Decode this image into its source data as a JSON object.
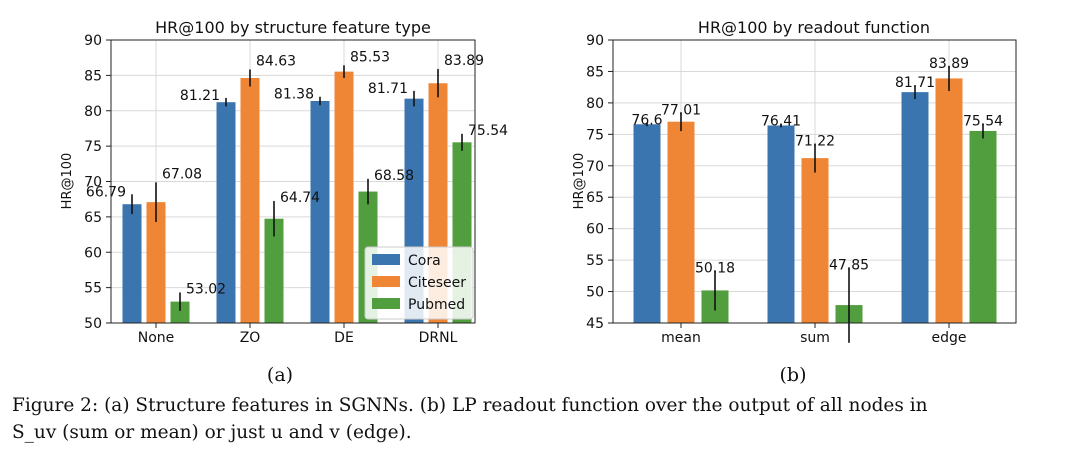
{
  "figure_caption": {
    "line1": "Figure 2: (a) Structure features in SGNNs. (b) LP readout function over the output of all nodes in",
    "line2": "S_uv (sum or mean) or just u and v (edge)."
  },
  "chart_data": [
    {
      "type": "bar",
      "title": "HR@100 by structure feature type",
      "subfigure_label": "(a)",
      "ylabel": "HR@100",
      "ylim": [
        50,
        90
      ],
      "yticks": [
        50,
        55,
        60,
        65,
        70,
        75,
        80,
        85,
        90
      ],
      "grid": true,
      "legend": "lower-right",
      "categories": [
        "None",
        "ZO",
        "DE",
        "DRNL"
      ],
      "series": [
        {
          "name": "Cora",
          "color": "#3b75af",
          "values": [
            66.79,
            81.21,
            81.38,
            81.71
          ],
          "err": [
            1.4,
            0.6,
            0.6,
            1.1
          ],
          "labels": [
            "66.79",
            "81.21",
            "81.38",
            "81.71"
          ]
        },
        {
          "name": "Citeseer",
          "color": "#ef8636",
          "values": [
            67.08,
            84.63,
            85.53,
            83.89
          ],
          "err": [
            2.8,
            1.2,
            0.9,
            2.0
          ],
          "labels": [
            "67.08",
            "84.63",
            "85.53",
            "83.89"
          ]
        },
        {
          "name": "Pubmed",
          "color": "#519e3e",
          "values": [
            53.02,
            64.74,
            68.58,
            75.54
          ],
          "err": [
            1.3,
            2.5,
            1.8,
            1.2
          ],
          "labels": [
            "53.02",
            "64.74",
            "68.58",
            "75.54"
          ]
        }
      ]
    },
    {
      "type": "bar",
      "title": "HR@100 by readout function",
      "subfigure_label": "(b)",
      "ylabel": "HR@100",
      "ylim": [
        45,
        90
      ],
      "yticks": [
        45,
        50,
        55,
        60,
        65,
        70,
        75,
        80,
        85,
        90
      ],
      "grid": true,
      "categories": [
        "mean",
        "sum",
        "edge"
      ],
      "series": [
        {
          "name": "Cora",
          "color": "#3b75af",
          "values": [
            76.6,
            76.41,
            81.71
          ],
          "err": [
            0.3,
            0.3,
            1.1
          ],
          "labels": [
            "76.6",
            "76.41",
            "81.71"
          ]
        },
        {
          "name": "Citeseer",
          "color": "#ef8636",
          "values": [
            77.01,
            71.22,
            83.89
          ],
          "err": [
            1.5,
            2.3,
            2.0
          ],
          "labels": [
            "77.01",
            "71.22",
            "83.89"
          ]
        },
        {
          "name": "Pubmed",
          "color": "#519e3e",
          "values": [
            50.18,
            47.85,
            75.54
          ],
          "err": [
            3.2,
            6.0,
            1.2
          ],
          "labels": [
            "50.18",
            "47.85",
            "75.54"
          ]
        }
      ]
    }
  ]
}
